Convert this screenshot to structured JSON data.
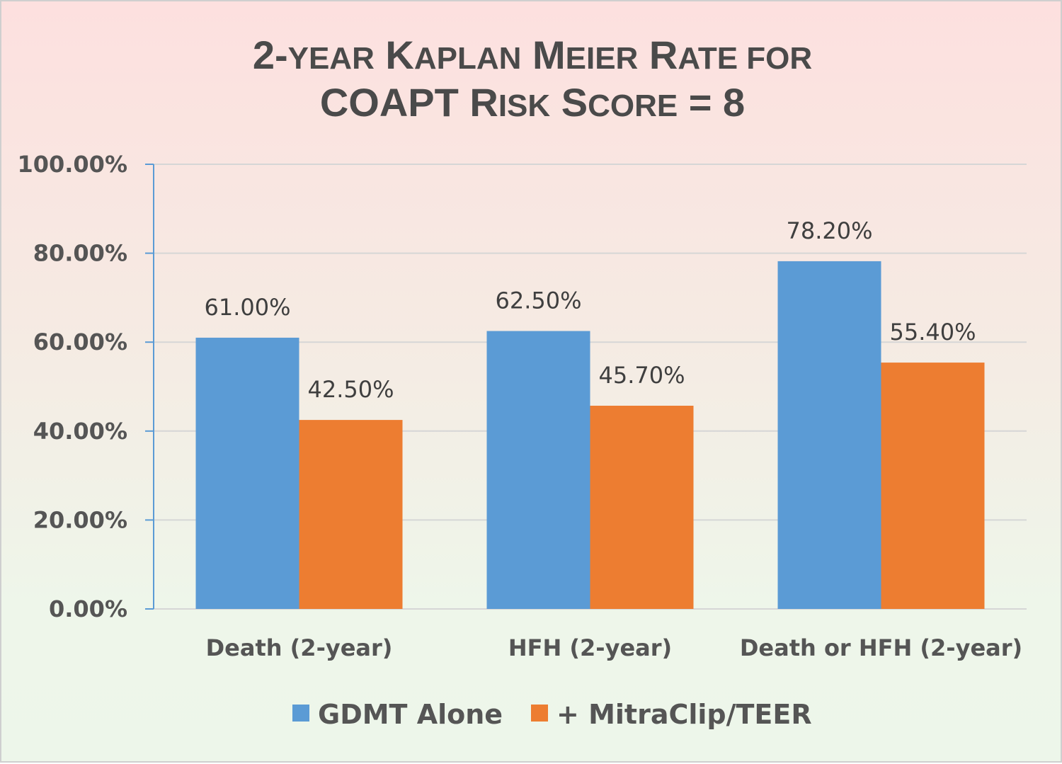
{
  "chart_data": {
    "type": "bar",
    "title_lines": [
      [
        {
          "text": "2-",
          "cap": true
        },
        {
          "text": "year",
          "cap": false
        },
        {
          "text": " K",
          "cap": true
        },
        {
          "text": "aplan",
          "cap": false
        },
        {
          "text": " M",
          "cap": true
        },
        {
          "text": "eier",
          "cap": false
        },
        {
          "text": " R",
          "cap": true
        },
        {
          "text": "ate for",
          "cap": false
        }
      ],
      [
        {
          "text": "COAPT R",
          "cap": true
        },
        {
          "text": "isk",
          "cap": false
        },
        {
          "text": " S",
          "cap": true
        },
        {
          "text": "core",
          "cap": false
        },
        {
          "text": " = 8",
          "cap": true
        }
      ]
    ],
    "categories": [
      "Death (2-year)",
      "HFH (2-year)",
      "Death or HFH (2-year)"
    ],
    "series": [
      {
        "name": "GDMT Alone",
        "color": "#5b9bd5",
        "values": [
          61.0,
          62.5,
          78.2
        ],
        "labels": [
          "61.00%",
          "62.50%",
          "78.20%"
        ]
      },
      {
        "name": "+ MitraClip/TEER",
        "color": "#ed7d31",
        "values": [
          42.5,
          45.7,
          55.4
        ],
        "labels": [
          "42.50%",
          "45.70%",
          "55.40%"
        ]
      }
    ],
    "y_ticks": [
      0,
      20,
      40,
      60,
      80,
      100
    ],
    "y_tick_labels": [
      "0.00%",
      "20.00%",
      "40.00%",
      "60.00%",
      "80.00%",
      "100.00%"
    ],
    "ylim": [
      0,
      100
    ],
    "grid": true,
    "legend_position": "bottom"
  }
}
